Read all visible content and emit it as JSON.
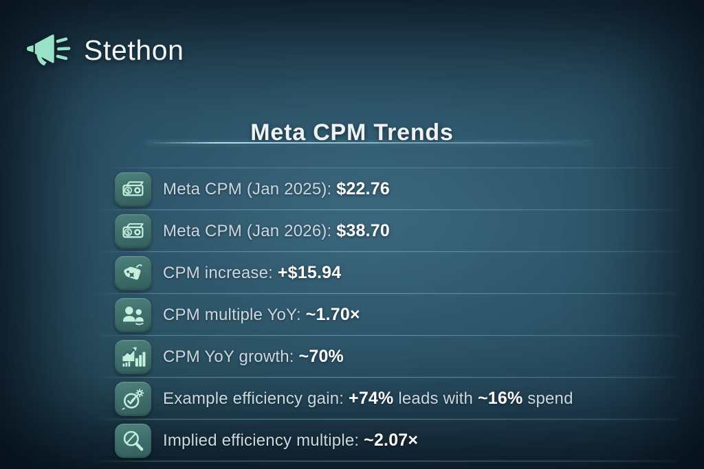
{
  "brand": {
    "name": "Stethon",
    "icon": "megaphone-icon"
  },
  "header": {
    "title": "Meta CPM Trends"
  },
  "colors": {
    "accent_mint": "#98e3c7",
    "badge_teal": "#3f6f6c",
    "background_teal": "#27495c",
    "divider_blue": "#a8d6e7",
    "text_primary": "#ffffff",
    "text_secondary": "#ccd8df"
  },
  "rows": [
    {
      "icon": "money-icon",
      "segments": [
        {
          "text": "Meta CPM (Jan 2025): ",
          "bold": false
        },
        {
          "text": "$22.76",
          "bold": true
        }
      ]
    },
    {
      "icon": "money-icon",
      "segments": [
        {
          "text": "Meta CPM (Jan 2026): ",
          "bold": false
        },
        {
          "text": "$38.70",
          "bold": true
        }
      ]
    },
    {
      "icon": "price-tag-icon",
      "segments": [
        {
          "text": "CPM increase: ",
          "bold": false
        },
        {
          "text": "+$15.94",
          "bold": true
        }
      ]
    },
    {
      "icon": "people-icon",
      "segments": [
        {
          "text": "CPM multiple YoY: ",
          "bold": false
        },
        {
          "text": "~1.70×",
          "bold": true
        }
      ]
    },
    {
      "icon": "bar-chart-icon",
      "segments": [
        {
          "text": "CPM YoY growth: ",
          "bold": false
        },
        {
          "text": "~70%",
          "bold": true
        }
      ]
    },
    {
      "icon": "gauge-gear-icon",
      "segments": [
        {
          "text": "Example efficiency gain: ",
          "bold": false
        },
        {
          "text": "+74%",
          "bold": true
        },
        {
          "text": " leads with ",
          "bold": false
        },
        {
          "text": "~16%",
          "bold": true
        },
        {
          "text": " spend",
          "bold": false
        }
      ]
    },
    {
      "icon": "magnifier-icon",
      "segments": [
        {
          "text": "Implied efficiency multiple: ",
          "bold": false
        },
        {
          "text": "~2.07×",
          "bold": true
        }
      ]
    }
  ],
  "chart_data": {
    "type": "table",
    "title": "Meta CPM Trends",
    "rows": [
      [
        "Meta CPM (Jan 2025)",
        "$22.76"
      ],
      [
        "Meta CPM (Jan 2026)",
        "$38.70"
      ],
      [
        "CPM increase",
        "+$15.94"
      ],
      [
        "CPM multiple YoY",
        "~1.70×"
      ],
      [
        "CPM YoY growth",
        "~70%"
      ],
      [
        "Example efficiency gain",
        "+74% leads with ~16% spend"
      ],
      [
        "Implied efficiency multiple",
        "~2.07×"
      ]
    ],
    "values": {
      "cpm_jan_2025": 22.76,
      "cpm_jan_2026": 38.7,
      "cpm_increase": 15.94,
      "cpm_multiple_yoy": 1.7,
      "cpm_yoy_growth_pct": 70,
      "leads_gain_pct": 74,
      "spend_pct": 16,
      "efficiency_multiple": 2.07
    }
  }
}
